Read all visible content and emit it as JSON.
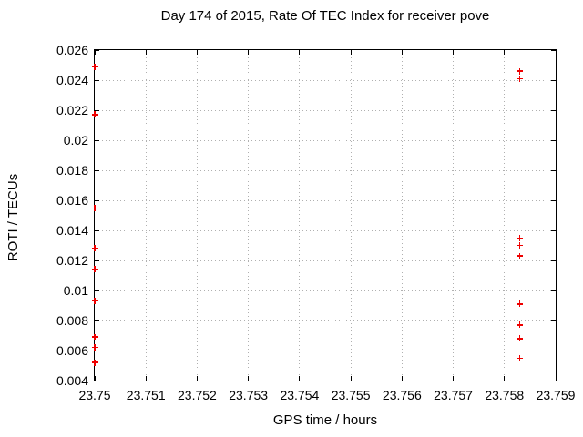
{
  "colors": {
    "marker": "#ee0000",
    "grid": "#b0b0b0",
    "axis": "#000000",
    "background": "#ffffff",
    "text": "#000000"
  },
  "chart_data": {
    "type": "scatter",
    "title": "Day 174 of 2015, Rate Of TEC Index for receiver pove",
    "xlabel": "GPS time / hours",
    "ylabel": "ROTI / TECUs",
    "xlim": [
      23.75,
      23.759
    ],
    "ylim": [
      0.004,
      0.026
    ],
    "x_tick_values": [
      23.75,
      23.751,
      23.752,
      23.753,
      23.754,
      23.755,
      23.756,
      23.757,
      23.758,
      23.759
    ],
    "x_tick_labels": [
      "23.75",
      "23.751",
      "23.752",
      "23.753",
      "23.754",
      "23.755",
      "23.756",
      "23.757",
      "23.758",
      "23.759"
    ],
    "y_tick_values": [
      0.004,
      0.006,
      0.008,
      0.01,
      0.012,
      0.014,
      0.016,
      0.018,
      0.02,
      0.022,
      0.024,
      0.026
    ],
    "y_tick_labels": [
      "0.004",
      "0.006",
      "0.008",
      "0.01",
      "0.012",
      "0.014",
      "0.016",
      "0.018",
      "0.02",
      "0.022",
      "0.024",
      "0.026"
    ],
    "grid": true,
    "legend": "none",
    "marker": "plus",
    "series": [
      {
        "name": "ROTI",
        "color": "#ee0000",
        "points": [
          [
            23.75,
            0.0249
          ],
          [
            23.75,
            0.0217
          ],
          [
            23.75,
            0.0155
          ],
          [
            23.75,
            0.0128
          ],
          [
            23.75,
            0.0114
          ],
          [
            23.75,
            0.0093
          ],
          [
            23.75,
            0.0069
          ],
          [
            23.75,
            0.0062
          ],
          [
            23.75,
            0.0052
          ],
          [
            23.7583,
            0.0246
          ],
          [
            23.7583,
            0.0241
          ],
          [
            23.7583,
            0.0135
          ],
          [
            23.7583,
            0.013
          ],
          [
            23.7583,
            0.0123
          ],
          [
            23.7583,
            0.0091
          ],
          [
            23.7583,
            0.0077
          ],
          [
            23.7583,
            0.0068
          ],
          [
            23.7583,
            0.0055
          ]
        ]
      }
    ]
  }
}
